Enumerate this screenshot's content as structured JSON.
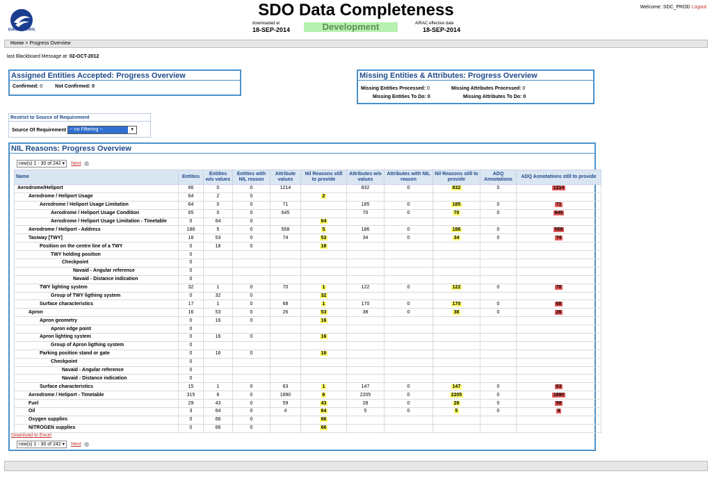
{
  "header": {
    "title": "SDO Data Completeness",
    "logo_text": "EUROCONTROL",
    "downloaded_label": "downloaded at",
    "downloaded_date": "18-SEP-2014",
    "environment": "Development",
    "airac_label": "AIRAC effective date",
    "airac_date": "18-SEP-2014",
    "welcome": "Welcome: SDC_PROD",
    "logout": "Logout"
  },
  "breadcrumb": {
    "home": "Home",
    "sep": ">",
    "current": "Progress Overview"
  },
  "blackboard": {
    "label": "last Blackboard Message at:",
    "date": "02-OCT-2012"
  },
  "assigned": {
    "title": "Assigned Entities Accepted: Progress Overview",
    "confirmed_label": "Confirmed:",
    "confirmed": "0",
    "not_confirmed_label": "Not Confirmed:",
    "not_confirmed": "0"
  },
  "missing": {
    "title": "Missing Entities & Attributes: Progress Overview",
    "ent_processed_label": "Missing Entities Processed:",
    "ent_processed": "0",
    "attr_processed_label": "Missing Attributes Processed:",
    "attr_processed": "0",
    "ent_todo_label": "Missing Entities To Do:",
    "ent_todo": "0",
    "attr_todo_label": "Missing Attributes To Do:",
    "attr_todo": "0"
  },
  "restrict": {
    "title": "Restrict to Source of Requirement",
    "label": "Source Of Requirement",
    "value": "-- no Filtering --"
  },
  "nil": {
    "title": "NIL Reasons: Progress Overview",
    "pager_select": "row(s) 1 - 30 of 242",
    "pager_next": "Next",
    "excel": "Download to Excel",
    "columns": [
      "Name",
      "Entities",
      "Entities w/o values",
      "Entities with NIL reason",
      "Attribute values",
      "Nil Reasons still to provide",
      "Attributes w/o values",
      "Attributes with NIL reason",
      "Nil Reasons still to provide",
      "ADQ Annotations",
      "ADQ Annotations still to provide"
    ],
    "rows": [
      {
        "name": "Aerodrome/Heliport",
        "indent": 0,
        "v": [
          "66",
          "0",
          "0",
          "1214",
          "",
          "832",
          "0",
          "832",
          "0",
          "1214"
        ]
      },
      {
        "name": "Aerodrome / Heliport Usage",
        "indent": 1,
        "v": [
          "64",
          "2",
          "0",
          "",
          "2",
          "",
          "",
          "",
          "",
          ""
        ]
      },
      {
        "name": "Aerodrome / Heliport Usage Limitation",
        "indent": 2,
        "v": [
          "64",
          "0",
          "0",
          "71",
          "",
          "185",
          "0",
          "185",
          "0",
          "71"
        ]
      },
      {
        "name": "Aerodrome / Heliport Usage Condition",
        "indent": 3,
        "v": [
          "65",
          "0",
          "0",
          "645",
          "",
          "70",
          "0",
          "70",
          "0",
          "645"
        ]
      },
      {
        "name": "Aerodrome / Heliport Usage Limitation - Timetable",
        "indent": 3,
        "v": [
          "0",
          "64",
          "0",
          "",
          "64",
          "",
          "",
          "",
          "",
          ""
        ]
      },
      {
        "name": "Aerodrome / Heliport - Address",
        "indent": 1,
        "v": [
          "186",
          "5",
          "0",
          "558",
          "5",
          "186",
          "0",
          "186",
          "0",
          "558"
        ]
      },
      {
        "name": "Taxiway [TWY]",
        "indent": 1,
        "v": [
          "18",
          "53",
          "0",
          "74",
          "53",
          "34",
          "0",
          "34",
          "0",
          "74"
        ]
      },
      {
        "name": "Position on the centre line of a TWY",
        "indent": 2,
        "v": [
          "0",
          "18",
          "0",
          "",
          "18",
          "",
          "",
          "",
          "",
          ""
        ]
      },
      {
        "name": "TWY holding position",
        "indent": 3,
        "v": [
          "0",
          "",
          "",
          "",
          "",
          "",
          "",
          "",
          "",
          ""
        ]
      },
      {
        "name": "Checkpoint",
        "indent": 4,
        "v": [
          "0",
          "",
          "",
          "",
          "",
          "",
          "",
          "",
          "",
          ""
        ]
      },
      {
        "name": "Navaid - Angular reference",
        "indent": 5,
        "v": [
          "0",
          "",
          "",
          "",
          "",
          "",
          "",
          "",
          "",
          ""
        ]
      },
      {
        "name": "Navaid - Distance indication",
        "indent": 5,
        "v": [
          "0",
          "",
          "",
          "",
          "",
          "",
          "",
          "",
          "",
          ""
        ]
      },
      {
        "name": "TWY lighting system",
        "indent": 2,
        "v": [
          "32",
          "1",
          "0",
          "70",
          "1",
          "122",
          "0",
          "122",
          "0",
          "70"
        ]
      },
      {
        "name": "Group of TWY ligthing system",
        "indent": 3,
        "v": [
          "0",
          "32",
          "0",
          "",
          "32",
          "",
          "",
          "",
          "",
          ""
        ]
      },
      {
        "name": "Surface characteristics",
        "indent": 2,
        "v": [
          "17",
          "1",
          "0",
          "68",
          "1",
          "170",
          "0",
          "170",
          "0",
          "68"
        ]
      },
      {
        "name": "Apron",
        "indent": 1,
        "v": [
          "16",
          "53",
          "0",
          "26",
          "53",
          "38",
          "0",
          "38",
          "0",
          "26"
        ]
      },
      {
        "name": "Apron geometry",
        "indent": 2,
        "v": [
          "0",
          "16",
          "0",
          "",
          "16",
          "",
          "",
          "",
          "",
          ""
        ]
      },
      {
        "name": "Apron edge point",
        "indent": 3,
        "v": [
          "0",
          "",
          "",
          "",
          "",
          "",
          "",
          "",
          "",
          ""
        ]
      },
      {
        "name": "Apron lighting system",
        "indent": 2,
        "v": [
          "0",
          "16",
          "0",
          "",
          "16",
          "",
          "",
          "",
          "",
          ""
        ]
      },
      {
        "name": "Group of Apron ligthing system",
        "indent": 3,
        "v": [
          "0",
          "",
          "",
          "",
          "",
          "",
          "",
          "",
          "",
          ""
        ]
      },
      {
        "name": "Parking position stand or gate",
        "indent": 2,
        "v": [
          "0",
          "16",
          "0",
          "",
          "16",
          "",
          "",
          "",
          "",
          ""
        ]
      },
      {
        "name": "Checkpoint",
        "indent": 3,
        "v": [
          "0",
          "",
          "",
          "",
          "",
          "",
          "",
          "",
          "",
          ""
        ]
      },
      {
        "name": "Navaid - Angular reference",
        "indent": 4,
        "v": [
          "0",
          "",
          "",
          "",
          "",
          "",
          "",
          "",
          "",
          ""
        ]
      },
      {
        "name": "Navaid - Distance indication",
        "indent": 4,
        "v": [
          "0",
          "",
          "",
          "",
          "",
          "",
          "",
          "",
          "",
          ""
        ]
      },
      {
        "name": "Surface characteristics",
        "indent": 2,
        "v": [
          "15",
          "1",
          "0",
          "63",
          "1",
          "147",
          "0",
          "147",
          "0",
          "63"
        ]
      },
      {
        "name": "Aerodrome / Heliport - Timetable",
        "indent": 1,
        "v": [
          "315",
          "6",
          "0",
          "1890",
          "6",
          "2205",
          "0",
          "2205",
          "0",
          "1890"
        ]
      },
      {
        "name": "Fuel",
        "indent": 1,
        "v": [
          "29",
          "43",
          "0",
          "59",
          "43",
          "28",
          "0",
          "28",
          "0",
          "59"
        ]
      },
      {
        "name": "Oil",
        "indent": 1,
        "v": [
          "3",
          "64",
          "0",
          "4",
          "64",
          "5",
          "0",
          "5",
          "0",
          "4"
        ]
      },
      {
        "name": "Oxygen supplies",
        "indent": 1,
        "v": [
          "0",
          "66",
          "0",
          "",
          "66",
          "",
          "",
          "",
          "",
          ""
        ]
      },
      {
        "name": "NITROGEN supplies",
        "indent": 1,
        "v": [
          "0",
          "66",
          "0",
          "",
          "66",
          "",
          "",
          "",
          "",
          ""
        ]
      }
    ]
  }
}
